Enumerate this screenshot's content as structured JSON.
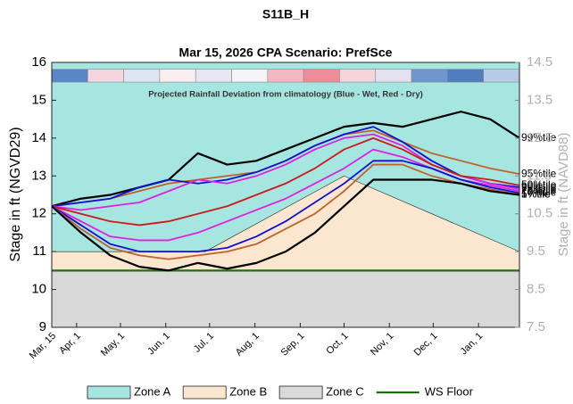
{
  "chart_data": {
    "type": "line",
    "title": "S11B_H",
    "subtitle": "Mar 15, 2026  CPA Scenario: PrefSce",
    "ylabel": "Stage in ft (NGVD29)",
    "y2label": "Stage in ft (NAVD88)",
    "xlim": [
      0,
      320
    ],
    "xticks": [
      {
        "value": 0,
        "label": "Mar, 15"
      },
      {
        "value": 17,
        "label": "Apr, 1"
      },
      {
        "value": 47,
        "label": "May, 1"
      },
      {
        "value": 78,
        "label": "Jun, 1"
      },
      {
        "value": 108,
        "label": "Jul, 1"
      },
      {
        "value": 139,
        "label": "Aug, 1"
      },
      {
        "value": 170,
        "label": "Sep, 1"
      },
      {
        "value": 200,
        "label": "Oct, 1"
      },
      {
        "value": 231,
        "label": "Nov, 1"
      },
      {
        "value": 261,
        "label": "Dec, 1"
      },
      {
        "value": 292,
        "label": "Jan, 1"
      }
    ],
    "ylim": [
      9,
      16
    ],
    "yticks": [
      9,
      10,
      11,
      12,
      13,
      14,
      15,
      16
    ],
    "y2lim": [
      7.5,
      14.5
    ],
    "y2ticks": [
      7.5,
      8.5,
      9.5,
      10.5,
      11.5,
      12.5,
      13.5,
      14.5
    ],
    "rainfall_deviation": {
      "label": "Projected Rainfall Deviation from climatology (Blue - Wet, Red - Dry)",
      "colors": [
        "#5b86c5",
        "#f6d6de",
        "#dde6f2",
        "#fbeef1",
        "#e8e8f4",
        "#f5f4f8",
        "#f4b8c4",
        "#ef8c99",
        "#f7d3db",
        "#e4e2f0",
        "#6f96cf",
        "#4f7dc0",
        "#b7cbe8"
      ]
    },
    "zones": [
      {
        "name": "Zone A",
        "color": "#a6e6e0",
        "x": [
          0,
          320
        ],
        "values": [
          16,
          16
        ]
      },
      {
        "name": "Zone B",
        "color": "#fbe6cf",
        "x": [
          0,
          105,
          200,
          320
        ],
        "values": [
          11,
          11,
          13,
          11
        ]
      },
      {
        "name": "Zone C",
        "color": "#d9d9d9",
        "x": [
          0,
          320
        ],
        "values": [
          10.5,
          10.5
        ]
      }
    ],
    "floor": {
      "name": "WS Floor",
      "color": "#1f6f12",
      "x": [
        0,
        320
      ],
      "values": [
        10.5,
        10.5
      ]
    },
    "x": [
      0,
      20,
      40,
      60,
      80,
      100,
      120,
      140,
      160,
      180,
      200,
      220,
      240,
      260,
      280,
      300,
      320
    ],
    "series": [
      {
        "name": "99%tile",
        "color": "#000000",
        "values": [
          12.2,
          12.4,
          12.5,
          12.7,
          12.9,
          13.6,
          13.3,
          13.4,
          13.7,
          14.0,
          14.3,
          14.4,
          14.3,
          14.5,
          14.7,
          14.5,
          14.0
        ]
      },
      {
        "name": "95%tile",
        "color": "#c0622a",
        "values": [
          12.2,
          12.3,
          12.4,
          12.6,
          12.8,
          12.9,
          13.0,
          13.1,
          13.4,
          13.8,
          14.1,
          14.2,
          13.9,
          13.6,
          13.4,
          13.2,
          13.05
        ]
      },
      {
        "name": "90%tile",
        "color": "#1010d0",
        "values": [
          12.2,
          12.3,
          12.4,
          12.7,
          12.9,
          12.8,
          12.9,
          13.1,
          13.4,
          13.8,
          14.1,
          14.3,
          13.9,
          13.4,
          13.0,
          12.8,
          12.7
        ]
      },
      {
        "name": "75%tile",
        "color": "#e020e0",
        "values": [
          12.2,
          12.1,
          12.2,
          12.3,
          12.6,
          12.9,
          12.8,
          13.0,
          13.3,
          13.7,
          14.0,
          14.1,
          13.8,
          13.3,
          13.0,
          12.8,
          12.65
        ]
      },
      {
        "name": "50%tile",
        "color": "#d01818",
        "values": [
          12.2,
          12.0,
          11.8,
          11.7,
          11.8,
          12.0,
          12.2,
          12.5,
          12.8,
          13.2,
          13.7,
          14.0,
          13.7,
          13.3,
          13.0,
          12.9,
          12.75
        ]
      },
      {
        "name": "25%tile",
        "color": "#e020e0",
        "values": [
          12.2,
          11.8,
          11.4,
          11.3,
          11.3,
          11.5,
          11.8,
          12.1,
          12.4,
          12.8,
          13.2,
          13.7,
          13.5,
          13.2,
          12.9,
          12.75,
          12.6
        ]
      },
      {
        "name": "10%tile",
        "color": "#1010d0",
        "values": [
          12.2,
          11.7,
          11.2,
          11.0,
          11.0,
          11.0,
          11.1,
          11.4,
          11.8,
          12.3,
          12.8,
          13.4,
          13.4,
          13.2,
          12.9,
          12.7,
          12.55
        ]
      },
      {
        "name": "5%tile",
        "color": "#c0622a",
        "values": [
          12.2,
          11.6,
          11.1,
          10.9,
          10.8,
          10.9,
          11.0,
          11.2,
          11.6,
          12.0,
          12.6,
          13.3,
          13.3,
          13.0,
          12.8,
          12.65,
          12.5
        ]
      },
      {
        "name": "1%tile",
        "color": "#000000",
        "values": [
          12.2,
          11.5,
          10.9,
          10.6,
          10.5,
          10.7,
          10.55,
          10.7,
          11.0,
          11.5,
          12.2,
          12.9,
          12.9,
          12.9,
          12.8,
          12.6,
          12.5
        ]
      }
    ]
  }
}
